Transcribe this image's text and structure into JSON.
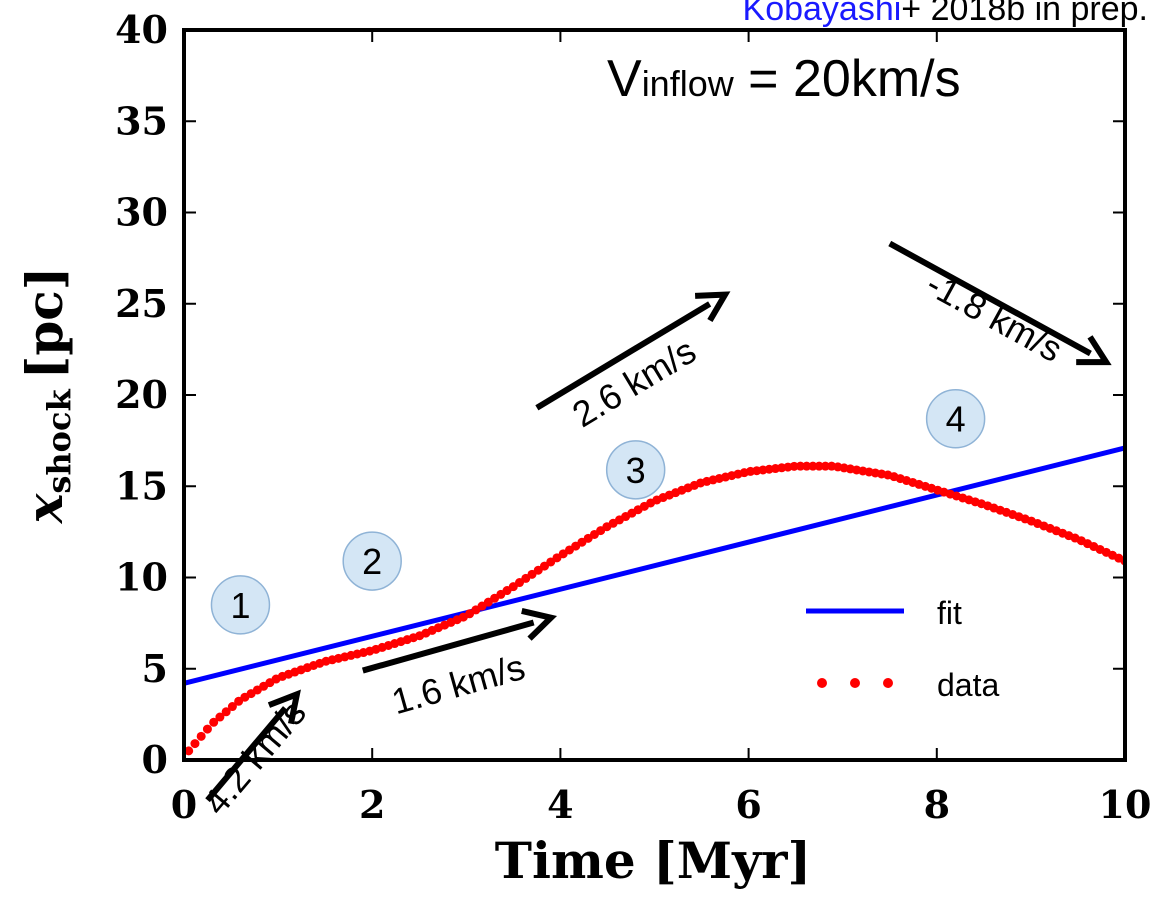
{
  "chart_data": {
    "type": "line",
    "xlabel": "Time [Myr]",
    "ylabel_main": "x",
    "ylabel_sub": "shock",
    "ylabel_unit": "[pc]",
    "xlim": [
      0,
      10
    ],
    "ylim": [
      0,
      40
    ],
    "xticks": [
      0,
      2,
      4,
      6,
      8,
      10
    ],
    "yticks": [
      0,
      5,
      10,
      15,
      20,
      25,
      30,
      35,
      40
    ],
    "grid": false,
    "legend_position": "lower-right",
    "credit": {
      "name": "Kobayashi",
      "rest": "+ 2018b in prep.",
      "name_color": "#1a1aff"
    },
    "condition_label": {
      "main": "V",
      "sub": "inflow",
      "rest": " = 20km/s"
    },
    "series": [
      {
        "name": "fit",
        "style": "solid",
        "color": "#0000ff",
        "x": [
          0,
          10
        ],
        "y": [
          4.2,
          17.1
        ]
      },
      {
        "name": "data",
        "style": "dotted",
        "color": "#ff0000",
        "x": [
          0.05,
          0.3,
          0.6,
          1.0,
          1.5,
          2.0,
          2.5,
          3.0,
          3.5,
          4.0,
          4.5,
          5.0,
          5.5,
          6.0,
          6.5,
          6.9,
          7.5,
          8.0,
          8.5,
          9.0,
          9.5,
          10.0
        ],
        "y": [
          0.5,
          2.0,
          3.3,
          4.5,
          5.4,
          6.0,
          6.8,
          7.9,
          9.5,
          11.2,
          12.8,
          14.2,
          15.2,
          15.8,
          16.1,
          16.1,
          15.6,
          14.8,
          14.0,
          13.1,
          12.1,
          10.9
        ]
      }
    ],
    "phases": [
      {
        "label": "1",
        "x": 0.6,
        "y": 8.5
      },
      {
        "label": "2",
        "x": 2.0,
        "y": 10.9
      },
      {
        "label": "3",
        "x": 4.8,
        "y": 15.9
      },
      {
        "label": "4",
        "x": 8.2,
        "y": 18.7
      }
    ],
    "arrows": [
      {
        "label": "4.2 km/s",
        "x1": 0.25,
        "y1": -2.2,
        "x2": 1.2,
        "y2": 3.6,
        "lx": 0.85,
        "ly": -0.3
      },
      {
        "label": "1.6 km/s",
        "x1": 1.9,
        "y1": 4.9,
        "x2": 3.9,
        "y2": 7.8,
        "lx": 2.95,
        "ly": 3.5
      },
      {
        "label": "2.6 km/s",
        "x1": 3.75,
        "y1": 19.3,
        "x2": 5.75,
        "y2": 25.5,
        "lx": 4.85,
        "ly": 20.1
      },
      {
        "label": "-1.8 km/s",
        "x1": 7.5,
        "y1": 28.3,
        "x2": 9.8,
        "y2": 21.8,
        "lx": 8.55,
        "ly": 23.7
      }
    ]
  }
}
